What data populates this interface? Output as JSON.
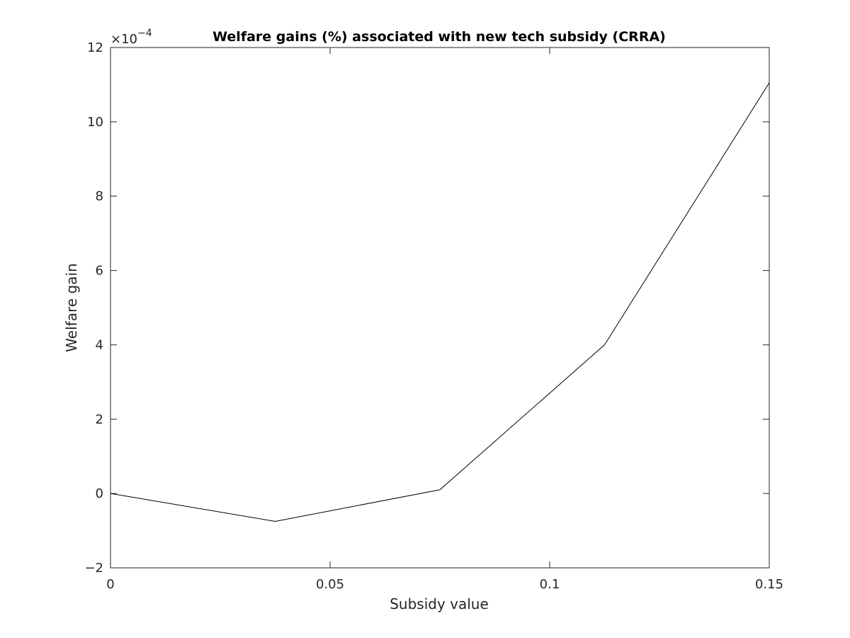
{
  "chart_data": {
    "type": "line",
    "title": "Welfare gains (%) associated with new tech subsidy (CRRA)",
    "xlabel": "Subsidy value",
    "ylabel": "Welfare gain",
    "y_multiplier": {
      "base": "×10",
      "exponent": "−4"
    },
    "xlim": [
      0,
      0.15
    ],
    "ylim": [
      -2,
      12
    ],
    "x_ticks": [
      0,
      0.05,
      0.1,
      0.15
    ],
    "x_tick_labels": [
      "0",
      "0.05",
      "0.1",
      "0.15"
    ],
    "y_ticks": [
      -2,
      0,
      2,
      4,
      6,
      8,
      10,
      12
    ],
    "y_tick_labels": [
      "−2",
      "0",
      "2",
      "4",
      "6",
      "8",
      "10",
      "12"
    ],
    "grid": false,
    "series": [
      {
        "x": [
          0,
          0.0375,
          0.075,
          0.1125,
          0.15
        ],
        "y": [
          0,
          -0.75,
          0.1,
          4.0,
          11.05
        ],
        "color": "#000000"
      }
    ]
  }
}
